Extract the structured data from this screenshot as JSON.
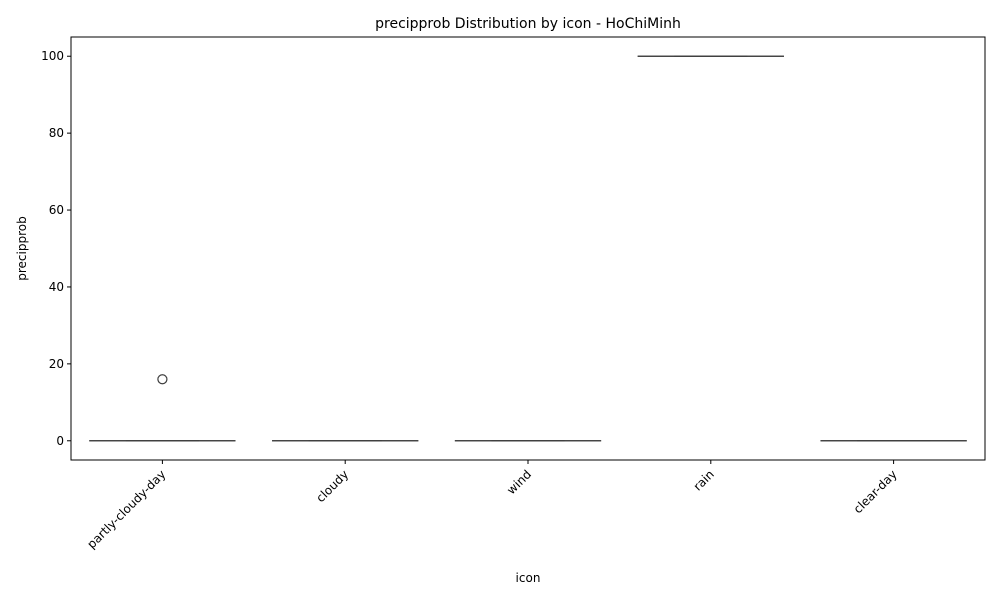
{
  "chart_data": {
    "type": "box",
    "title": "precipprob Distribution by icon - HoChiMinh",
    "xlabel": "icon",
    "ylabel": "precipprob",
    "categories": [
      "partly-cloudy-day",
      "cloudy",
      "wind",
      "rain",
      "clear-day"
    ],
    "boxes": [
      {
        "category": "partly-cloudy-day",
        "whisker_low": 0,
        "q1": 0,
        "median": 0,
        "q3": 0,
        "whisker_high": 0,
        "outliers": [
          16
        ]
      },
      {
        "category": "cloudy",
        "whisker_low": 0,
        "q1": 0,
        "median": 0,
        "q3": 0,
        "whisker_high": 0,
        "outliers": []
      },
      {
        "category": "wind",
        "whisker_low": 0,
        "q1": 0,
        "median": 0,
        "q3": 0,
        "whisker_high": 0,
        "outliers": []
      },
      {
        "category": "rain",
        "whisker_low": 100,
        "q1": 100,
        "median": 100,
        "q3": 100,
        "whisker_high": 100,
        "outliers": []
      },
      {
        "category": "clear-day",
        "whisker_low": 0,
        "q1": 0,
        "median": 0,
        "q3": 0,
        "whisker_high": 0,
        "outliers": []
      }
    ],
    "ylim": [
      -5,
      105
    ],
    "yticks": [
      0,
      20,
      40,
      60,
      80,
      100
    ],
    "grid": false,
    "colors": {
      "box_edge": "#3f3f3f",
      "axis": "#000000"
    }
  }
}
